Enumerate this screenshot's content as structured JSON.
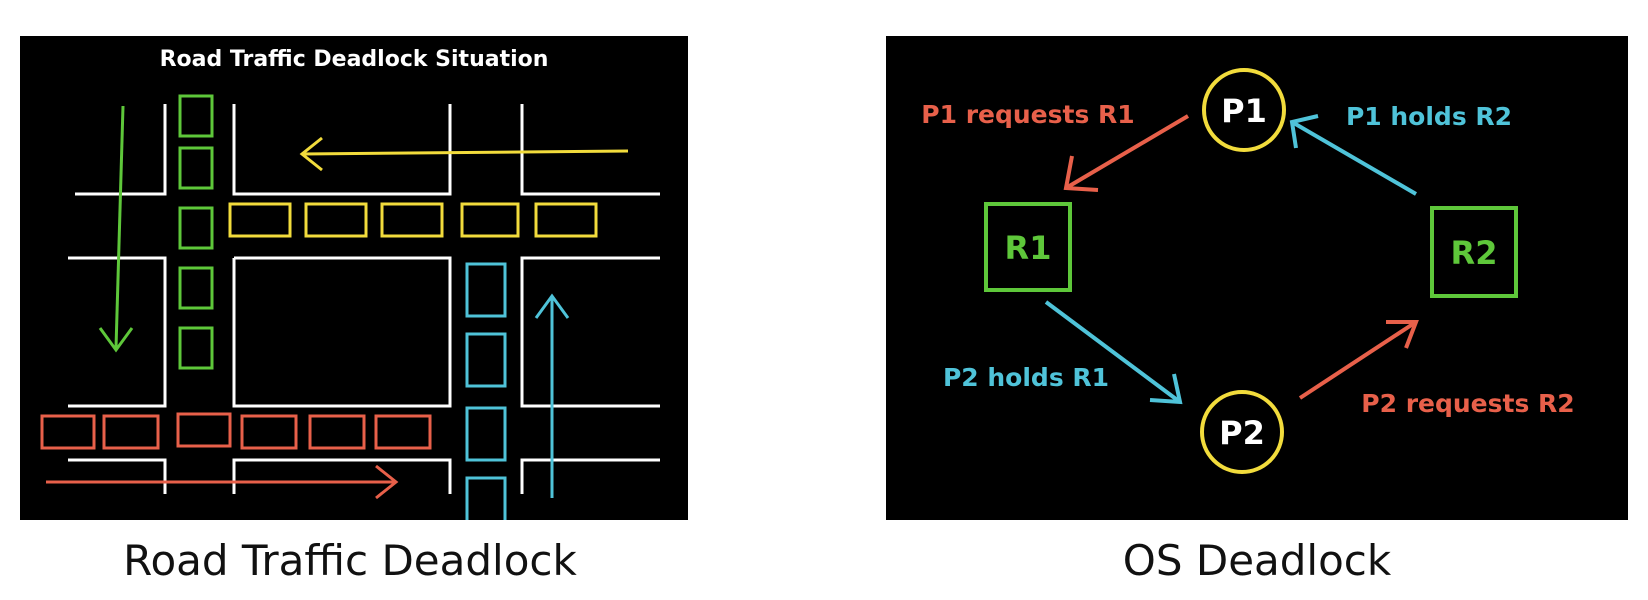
{
  "colors": {
    "background": "#000000",
    "road_lines": "#ffffff",
    "green": "#5ec73a",
    "yellow": "#f2dc3c",
    "cyan": "#4fc3d9",
    "red": "#e8604a"
  },
  "road_panel": {
    "title": "Road Traffic Deadlock Situation",
    "caption": "Road Traffic Deadlock"
  },
  "os_panel": {
    "caption": "OS Deadlock",
    "processes": [
      {
        "id": "p1",
        "label": "P1"
      },
      {
        "id": "p2",
        "label": "P2"
      }
    ],
    "resources": [
      {
        "id": "r1",
        "label": "R1"
      },
      {
        "id": "r2",
        "label": "R2"
      }
    ],
    "edges": [
      {
        "id": "p1-requests-r1",
        "label": "P1 requests R1",
        "color": "#e8604a"
      },
      {
        "id": "p1-holds-r2",
        "label": "P1 holds R2",
        "color": "#4fc3d9"
      },
      {
        "id": "p2-holds-r1",
        "label": "P2 holds R1",
        "color": "#4fc3d9"
      },
      {
        "id": "p2-requests-r2",
        "label": "P2 requests R2",
        "color": "#e8604a"
      }
    ]
  }
}
